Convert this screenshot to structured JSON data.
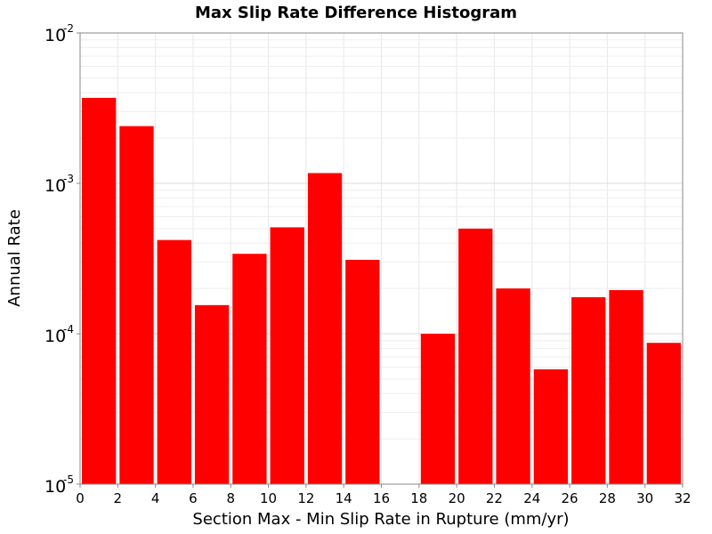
{
  "chart_data": {
    "type": "bar",
    "title": "Max Slip Rate Difference Histogram",
    "xlabel": "Section Max - Min Slip Rate in Rupture (mm/yr)",
    "ylabel": "Annual Rate",
    "y_scale": "log",
    "xlim": [
      0,
      32
    ],
    "ylim": [
      1e-05,
      0.01
    ],
    "grid": true,
    "bar_color": "#ff0000",
    "bin_width": 2,
    "x_ticks": [
      "0",
      "2",
      "4",
      "6",
      "8",
      "10",
      "12",
      "14",
      "16",
      "18",
      "20",
      "22",
      "24",
      "26",
      "28",
      "30",
      "32"
    ],
    "y_ticks": [
      {
        "base": "10",
        "exp": "-5"
      },
      {
        "base": "10",
        "exp": "-4"
      },
      {
        "base": "10",
        "exp": "-3"
      },
      {
        "base": "10",
        "exp": "-2"
      }
    ],
    "bins": [
      {
        "x": 1,
        "value": 0.0037
      },
      {
        "x": 3,
        "value": 0.0024
      },
      {
        "x": 5,
        "value": 0.00042
      },
      {
        "x": 7,
        "value": 0.000155
      },
      {
        "x": 9,
        "value": 0.00034
      },
      {
        "x": 11,
        "value": 0.00051
      },
      {
        "x": 13,
        "value": 0.00117
      },
      {
        "x": 15,
        "value": 0.00031
      },
      {
        "x": 17,
        "value": 0
      },
      {
        "x": 19,
        "value": 0.0001
      },
      {
        "x": 21,
        "value": 0.0005
      },
      {
        "x": 23,
        "value": 0.0002
      },
      {
        "x": 25,
        "value": 5.8e-05
      },
      {
        "x": 27,
        "value": 0.000175
      },
      {
        "x": 29,
        "value": 0.000195
      },
      {
        "x": 31,
        "value": 8.7e-05
      }
    ]
  }
}
